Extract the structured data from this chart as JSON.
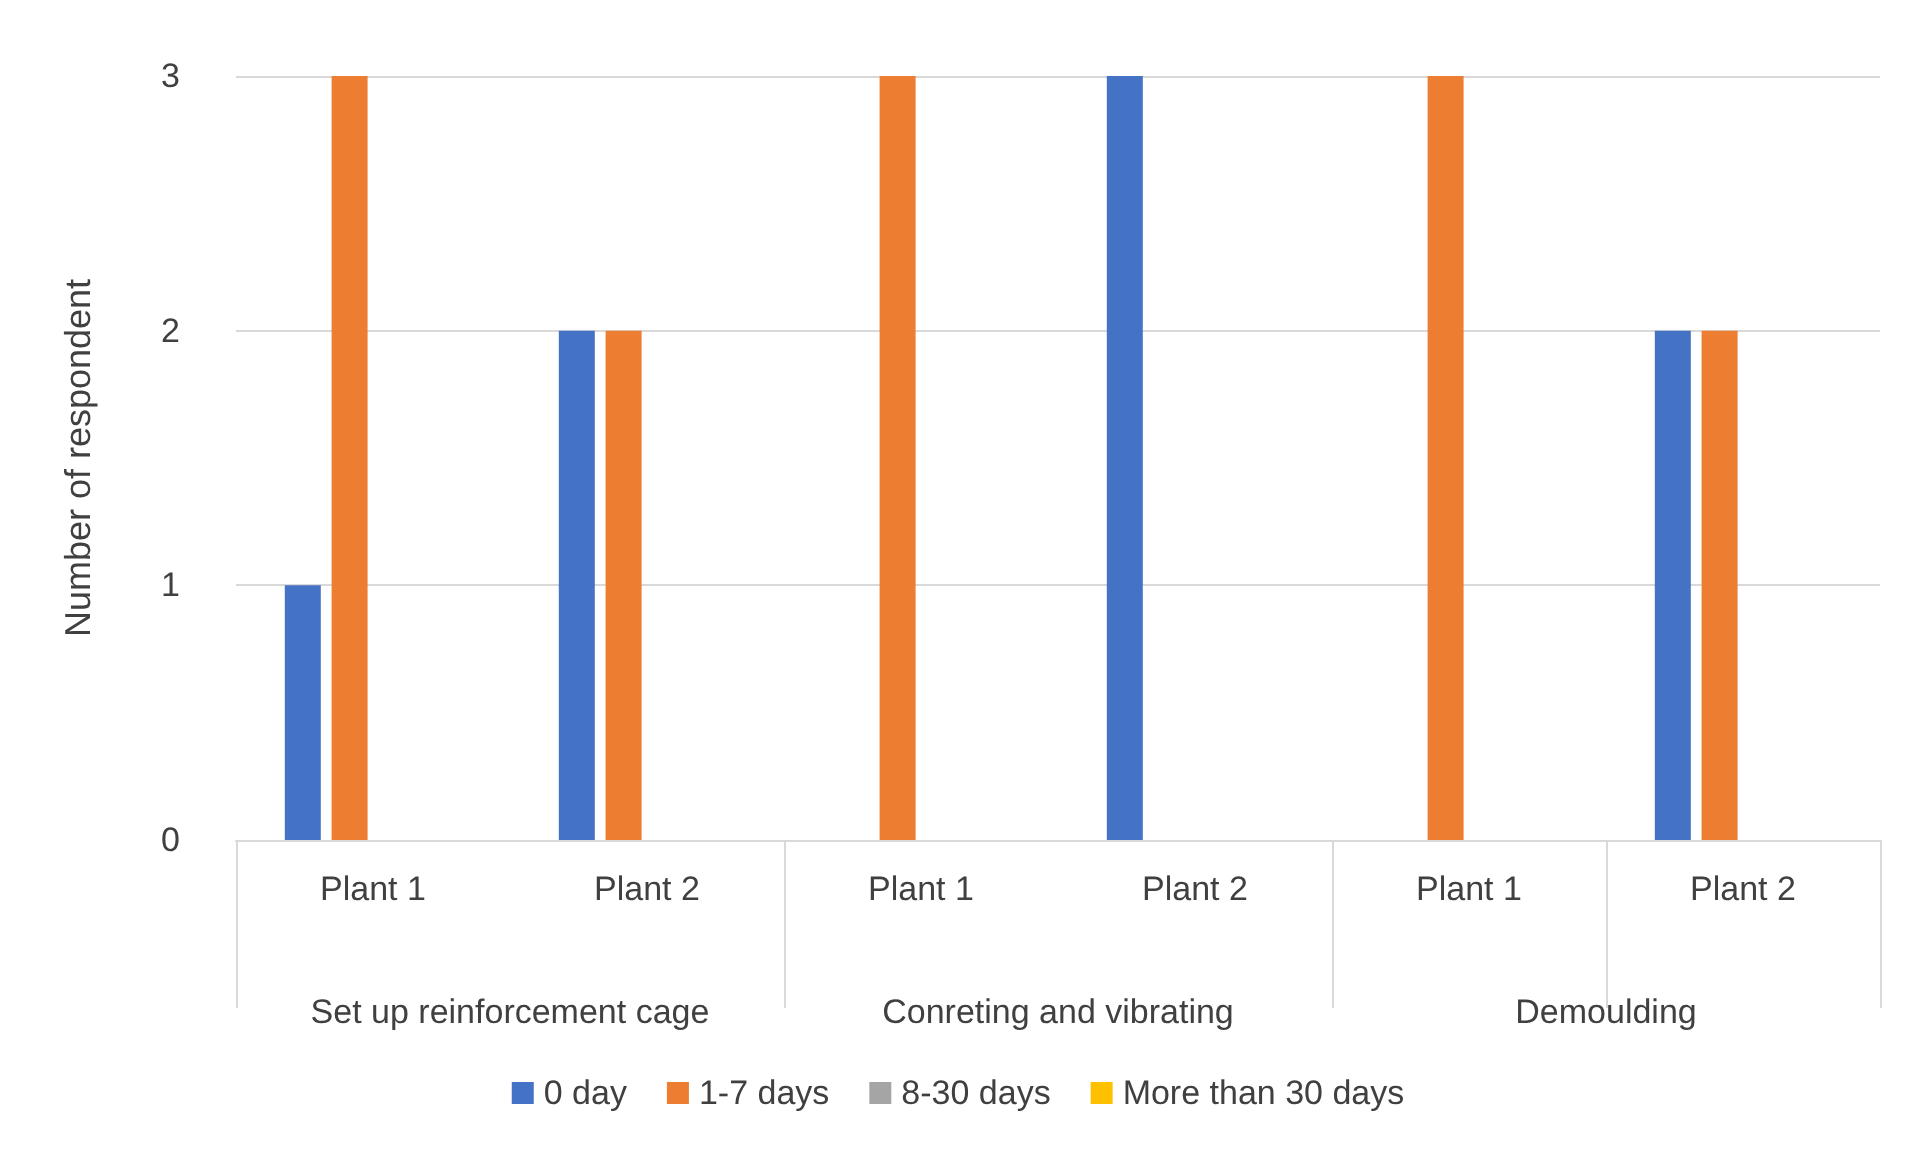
{
  "chart_data": {
    "type": "bar",
    "ylabel": "Number of respondent",
    "categories": [
      "Plant 1",
      "Plant 2",
      "Plant 1",
      "Plant 2",
      "Plant 1",
      "Plant 2"
    ],
    "annotations": [
      "Set up reinforcement cage",
      "Conreting and vibrating",
      "Demoulding"
    ],
    "series": [
      {
        "name": "0 day",
        "color": "#4472c4",
        "values": [
          1,
          2,
          0,
          3,
          0,
          2
        ]
      },
      {
        "name": "1-7 days",
        "color": "#ed7d31",
        "values": [
          3,
          2,
          3,
          0,
          3,
          2
        ]
      },
      {
        "name": "8-30 days",
        "color": "#a5a5a5",
        "values": [
          0,
          0,
          0,
          0,
          0,
          0
        ]
      },
      {
        "name": "More than 30 days",
        "color": "#ffc000",
        "values": [
          0,
          0,
          0,
          0,
          0,
          0
        ]
      }
    ],
    "ylim": [
      0,
      3
    ],
    "yticks": [
      0,
      1,
      2,
      3
    ],
    "grid": "y",
    "legend": "bottom"
  }
}
